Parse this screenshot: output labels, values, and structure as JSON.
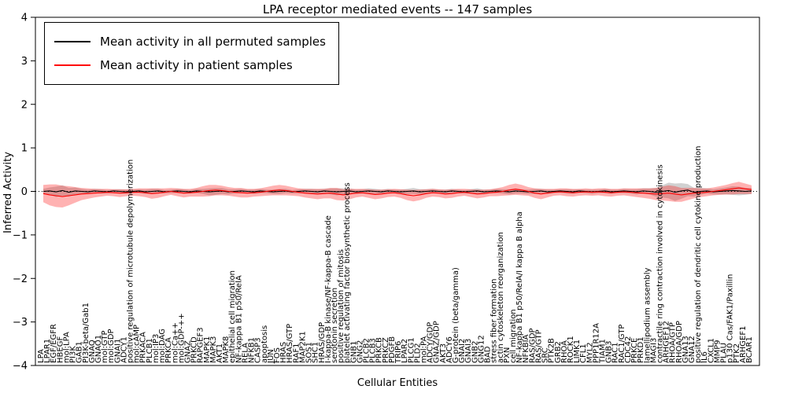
{
  "chart_data": {
    "type": "line",
    "title": "LPA receptor mediated events -- 147 samples",
    "xlabel": "Cellular Entities",
    "ylabel": "Inferred Activity",
    "ylim": [
      -4,
      4
    ],
    "yticks": [
      4,
      3,
      2,
      1,
      0,
      -1,
      -2,
      -3,
      -4
    ],
    "grid": false,
    "legend_position": "upper left",
    "categories": [
      "LPA",
      "LPAR1",
      "EGF/EGFR",
      "HBEGF",
      "mol:LPA",
      "PI3K",
      "GAB1",
      "PI3K-beta/Gab1",
      "GNAQ",
      "GNAO1",
      "mol:GTP",
      "mol:GDP",
      "GNAI1",
      "ADCY1",
      "positive regulation of microtubule depolymerization",
      "mol:cAMP",
      "PRKACA",
      "PLCB1",
      "mol:IP3",
      "mol:DAG",
      "PRKCA",
      "mol:Ca++",
      "mol:GDP-++",
      "GNAZ",
      "PRKCD",
      "RAPGEF3",
      "MAPK1",
      "MAPK3",
      "AKT1",
      "MAPK8",
      "epithelial cell migration",
      "NF-kappa B1 p50/RelA",
      "RELA",
      "NFKB1",
      "CASP3",
      "apoptosis",
      "JUN",
      "FOS",
      "HRAS",
      "HRAS/GTP",
      "RAF1",
      "MAP2K1",
      "SOS1",
      "SHC1",
      "HRAS/GDP",
      "I-kappa-B kinase/NF-kappa-B cascade",
      "serotonin secretion",
      "positive regulation of mitosis",
      "platelet activating factor biosynthetic process",
      "GNB1",
      "GNG2",
      "PLCB2",
      "PLCB3",
      "PRKCB",
      "PRKCZ",
      "PDGFB",
      "TRIP6",
      "LPAR2",
      "PLCG1",
      "PLD2",
      "mol:PA",
      "ADCY/GDP",
      "GNAZ/GDP",
      "AKT3",
      "ADCY6",
      "G-protein (beta/gamma)",
      "GNAI2",
      "GNAI3",
      "GNB2",
      "GNG12",
      "BAD",
      "stress fiber formation",
      "actin cytoskeleton reorganization",
      "PXN",
      "cell migration",
      "NF-kappa B1 p50/RelA/I kappa B alpha",
      "NFKBIA",
      "RAS/GDP",
      "RAS/GTP",
      "SRC",
      "PTK2B",
      "GRB2",
      "RHOA",
      "ROCK1",
      "LIMK1",
      "CFL1",
      "MYL2",
      "PPP1R12A",
      "TIAM1",
      "GNB3",
      "RAC1",
      "RAC1/GTP",
      "CDC42",
      "PRKCE",
      "PRKD1",
      "lamellipodium assembly",
      "MAGI3",
      "contractile ring contraction involved in cytokinesis",
      "ARHGEF12",
      "RHOA/GTP",
      "RHOA/GDP",
      "GNA13",
      "GNA12",
      "positive regulation of dendritic cell cytokine production",
      "IL6",
      "CXCL1",
      "MMP9",
      "PLAU",
      "p130 Cas/FAK1/Paxillin",
      "PTK2",
      "ARHGEF1",
      "BCAR1"
    ],
    "series": [
      {
        "name": "Mean activity in all permuted samples",
        "color": "#000000",
        "band_color": "rgba(0,0,0,0.18)",
        "values": [
          0,
          0.01,
          -0.01,
          0.02,
          -0.02,
          0.01,
          0,
          -0.01,
          0.01,
          0,
          -0.01,
          0.01,
          0,
          -0.01,
          0,
          0.01,
          -0.01,
          0,
          0.01,
          -0.01,
          0,
          0.01,
          0,
          -0.01,
          0.01,
          0,
          -0.01,
          0,
          0.01,
          -0.01,
          0,
          0.01,
          0,
          -0.01,
          0.01,
          0,
          -0.01,
          0,
          0.01,
          -0.01,
          0,
          0.01,
          0,
          -0.01,
          0.01,
          0,
          -0.01,
          0,
          0.01,
          -0.01,
          0,
          0.01,
          0,
          -0.01,
          0.01,
          0,
          -0.01,
          0,
          0.01,
          -0.01,
          0,
          0.01,
          0,
          -0.01,
          0.01,
          0,
          -0.01,
          0,
          0.01,
          -0.01,
          0,
          0.01,
          0,
          -0.01,
          0.01,
          0,
          -0.01,
          0,
          0.01,
          -0.01,
          0,
          0.01,
          0,
          -0.01,
          0.01,
          0,
          -0.01,
          0,
          0.01,
          -0.01,
          0,
          0.01,
          0,
          -0.01,
          0.01,
          0,
          -0.02,
          0,
          0.02,
          -0.02,
          0.01,
          0.03,
          -0.02,
          0,
          0.01,
          -0.01,
          0,
          0.01,
          0.02,
          0.01,
          0,
          0.01
        ],
        "band_halfwidth": [
          0.06,
          0.08,
          0.12,
          0.12,
          0.1,
          0.08,
          0.06,
          0.05,
          0.05,
          0.05,
          0.04,
          0.04,
          0.05,
          0.05,
          0.04,
          0.04,
          0.05,
          0.06,
          0.05,
          0.04,
          0.04,
          0.05,
          0.05,
          0.04,
          0.05,
          0.06,
          0.08,
          0.08,
          0.07,
          0.06,
          0.05,
          0.05,
          0.04,
          0.05,
          0.05,
          0.04,
          0.05,
          0.06,
          0.05,
          0.04,
          0.05,
          0.05,
          0.06,
          0.06,
          0.05,
          0.07,
          0.08,
          0.07,
          0.06,
          0.05,
          0.05,
          0.06,
          0.06,
          0.05,
          0.05,
          0.04,
          0.05,
          0.06,
          0.07,
          0.06,
          0.05,
          0.05,
          0.04,
          0.05,
          0.05,
          0.04,
          0.04,
          0.05,
          0.06,
          0.05,
          0.04,
          0.05,
          0.05,
          0.06,
          0.06,
          0.05,
          0.05,
          0.06,
          0.05,
          0.05,
          0.04,
          0.04,
          0.05,
          0.05,
          0.04,
          0.04,
          0.05,
          0.04,
          0.05,
          0.05,
          0.04,
          0.05,
          0.05,
          0.06,
          0.06,
          0.07,
          0.1,
          0.14,
          0.18,
          0.2,
          0.18,
          0.14,
          0.1,
          0.08,
          0.06,
          0.06,
          0.07,
          0.08,
          0.1,
          0.1,
          0.08,
          0.07
        ]
      },
      {
        "name": "Mean activity in patient samples",
        "color": "#ff0000",
        "band_color": "rgba(255,0,0,0.30)",
        "values": [
          -0.05,
          -0.08,
          -0.1,
          -0.12,
          -0.1,
          -0.08,
          -0.06,
          -0.05,
          -0.04,
          -0.03,
          -0.02,
          -0.03,
          -0.04,
          -0.03,
          -0.02,
          -0.02,
          -0.03,
          -0.05,
          -0.04,
          -0.02,
          0.0,
          -0.02,
          -0.04,
          -0.03,
          -0.02,
          0.0,
          0.02,
          0.03,
          0.02,
          0.0,
          -0.02,
          -0.03,
          -0.04,
          -0.03,
          -0.02,
          0.0,
          0.02,
          0.03,
          0.02,
          0.0,
          -0.02,
          -0.04,
          -0.05,
          -0.06,
          -0.05,
          -0.04,
          -0.06,
          -0.08,
          -0.06,
          -0.04,
          -0.03,
          -0.05,
          -0.07,
          -0.06,
          -0.04,
          -0.03,
          -0.05,
          -0.08,
          -0.1,
          -0.08,
          -0.05,
          -0.03,
          -0.04,
          -0.06,
          -0.05,
          -0.03,
          -0.02,
          -0.04,
          -0.06,
          -0.05,
          -0.03,
          -0.02,
          0.0,
          0.03,
          0.05,
          0.03,
          0.0,
          -0.04,
          -0.06,
          -0.04,
          -0.02,
          -0.01,
          -0.02,
          -0.03,
          -0.02,
          -0.01,
          -0.02,
          -0.01,
          -0.02,
          -0.03,
          -0.02,
          -0.01,
          -0.02,
          -0.03,
          -0.04,
          -0.05,
          -0.06,
          -0.05,
          -0.04,
          -0.06,
          -0.08,
          -0.06,
          -0.04,
          -0.03,
          -0.02,
          0.0,
          0.02,
          0.04,
          0.06,
          0.08,
          0.06,
          0.04
        ],
        "band_halfwidth": [
          0.2,
          0.24,
          0.26,
          0.25,
          0.22,
          0.18,
          0.14,
          0.12,
          0.1,
          0.09,
          0.08,
          0.08,
          0.09,
          0.08,
          0.08,
          0.09,
          0.1,
          0.12,
          0.11,
          0.09,
          0.08,
          0.09,
          0.1,
          0.09,
          0.1,
          0.12,
          0.13,
          0.12,
          0.11,
          0.1,
          0.1,
          0.11,
          0.1,
          0.09,
          0.09,
          0.1,
          0.11,
          0.12,
          0.11,
          0.1,
          0.09,
          0.1,
          0.11,
          0.12,
          0.11,
          0.12,
          0.14,
          0.13,
          0.12,
          0.1,
          0.09,
          0.1,
          0.11,
          0.1,
          0.09,
          0.09,
          0.1,
          0.12,
          0.13,
          0.12,
          0.1,
          0.09,
          0.09,
          0.1,
          0.1,
          0.09,
          0.08,
          0.09,
          0.1,
          0.09,
          0.08,
          0.09,
          0.1,
          0.12,
          0.13,
          0.12,
          0.1,
          0.11,
          0.12,
          0.1,
          0.08,
          0.08,
          0.09,
          0.09,
          0.08,
          0.08,
          0.08,
          0.08,
          0.09,
          0.09,
          0.08,
          0.08,
          0.09,
          0.1,
          0.11,
          0.12,
          0.14,
          0.16,
          0.18,
          0.18,
          0.16,
          0.14,
          0.12,
          0.1,
          0.09,
          0.09,
          0.1,
          0.11,
          0.13,
          0.14,
          0.12,
          0.1
        ]
      }
    ]
  }
}
